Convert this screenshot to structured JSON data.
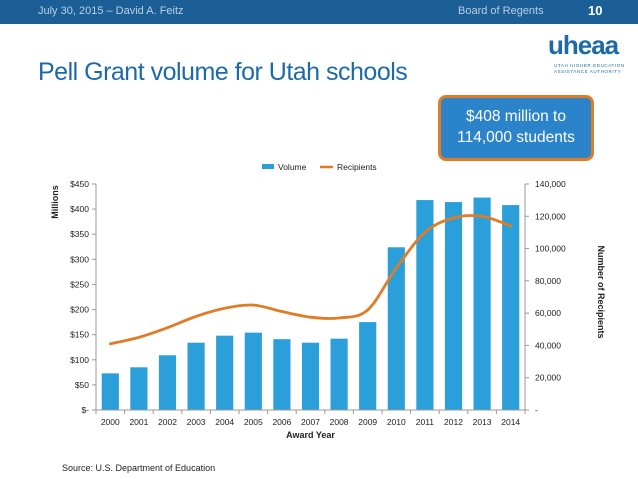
{
  "header": {
    "date_author": "July 30, 2015 – David A. Feitz",
    "board": "Board of Regents",
    "page_number": "10"
  },
  "slide": {
    "title": "Pell Grant volume for Utah schools",
    "callout_line1": "$408 million to",
    "callout_line2": "114,000 students",
    "source": "Source: U.S. Department of Education"
  },
  "logo": {
    "word": "uheaa",
    "line1": "UTAH HIGHER EDUCATION",
    "line2": "ASSISTANCE AUTHORITY"
  },
  "colors": {
    "bar": "#2b9fd9",
    "line": "#e07b27",
    "header_bg": "#1b5f96",
    "title": "#1d6aa8"
  },
  "chart_data": {
    "type": "bar",
    "categories": [
      "2000",
      "2001",
      "2002",
      "2003",
      "2004",
      "2005",
      "2006",
      "2007",
      "2008",
      "2009",
      "2010",
      "2011",
      "2012",
      "2013",
      "2014"
    ],
    "series": [
      {
        "name": "Volume",
        "type": "bar",
        "axis": "left",
        "values": [
          73,
          85,
          109,
          134,
          148,
          154,
          141,
          134,
          142,
          175,
          324,
          418,
          414,
          423,
          408
        ]
      },
      {
        "name": "Recipients",
        "type": "line",
        "axis": "right",
        "values": [
          41000,
          45000,
          51000,
          58000,
          63000,
          65000,
          61000,
          57500,
          57000,
          62000,
          88000,
          110000,
          119000,
          120000,
          114000
        ]
      }
    ],
    "xlabel": "Award Year",
    "ylabel_left": "Millions",
    "ylabel_right": "Number of Recipients",
    "ylim_left": [
      0,
      450
    ],
    "ylim_right": [
      0,
      140000
    ],
    "yticks_left": [
      "$-",
      "$50",
      "$100",
      "$150",
      "$200",
      "$250",
      "$300",
      "$350",
      "$400",
      "$450"
    ],
    "yticks_right": [
      "-",
      "20,000",
      "40,000",
      "60,000",
      "80,000",
      "100,000",
      "120,000",
      "140,000"
    ],
    "legend": [
      "Volume",
      "Recipients"
    ],
    "legend_position": "top-center",
    "grid": false
  }
}
